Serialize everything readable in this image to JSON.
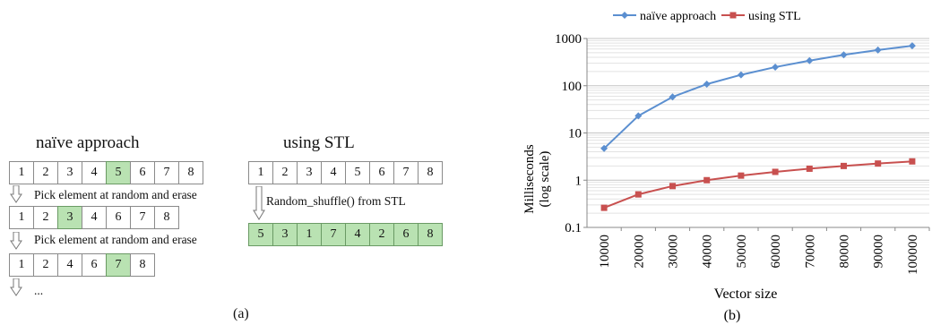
{
  "panel_a": {
    "label": "(a)",
    "naive": {
      "heading": "naïve approach",
      "rows": [
        {
          "cells": [
            "1",
            "2",
            "3",
            "4",
            "5",
            "6",
            "7",
            "8"
          ],
          "highlight": 4
        },
        {
          "cells": [
            "1",
            "2",
            "3",
            "4",
            "6",
            "7",
            "8"
          ],
          "highlight": 2
        },
        {
          "cells": [
            "1",
            "2",
            "4",
            "6",
            "7",
            "8"
          ],
          "highlight": 4
        }
      ],
      "steps": [
        "Pick element at random and erase",
        "Pick element at random and erase"
      ],
      "ellipsis": "..."
    },
    "stl": {
      "heading": "using STL",
      "rows": [
        {
          "cells": [
            "1",
            "2",
            "3",
            "4",
            "5",
            "6",
            "7",
            "8"
          ],
          "highlight": "none"
        },
        {
          "cells": [
            "5",
            "3",
            "1",
            "7",
            "4",
            "2",
            "6",
            "8"
          ],
          "highlight": "all"
        }
      ],
      "step": "Random_shuffle() from STL"
    },
    "colors": {
      "highlight": "#b9e2b2",
      "border": "#8a8a8a"
    }
  },
  "chart_data": {
    "type": "line",
    "label": "(b)",
    "xlabel": "Vector size",
    "ylabel": "Milliseconds",
    "ylabel2": "(log scale)",
    "yscale": "log",
    "ylim": [
      0.1,
      1000
    ],
    "yticks": [
      "0.1",
      "1",
      "10",
      "100",
      "1000"
    ],
    "x": [
      "10000",
      "20000",
      "30000",
      "40000",
      "50000",
      "60000",
      "70000",
      "80000",
      "90000",
      "100000"
    ],
    "grid": true,
    "legend_position": "top",
    "series": [
      {
        "name": "naïve approach",
        "color": "#5b8fd0",
        "marker": "diamond",
        "values": [
          4.7,
          23,
          58,
          108,
          170,
          248,
          340,
          450,
          570,
          700
        ]
      },
      {
        "name": "using STL",
        "color": "#c8504f",
        "marker": "square",
        "values": [
          0.26,
          0.5,
          0.75,
          1.0,
          1.25,
          1.5,
          1.75,
          2.0,
          2.25,
          2.5
        ]
      }
    ]
  }
}
